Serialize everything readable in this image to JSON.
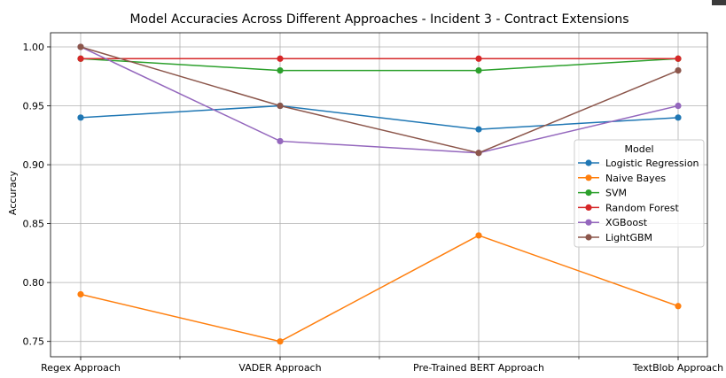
{
  "chart_data": {
    "type": "line",
    "title": "Model Accuracies Across Different Approaches - Incident 3 - Contract Extensions",
    "xlabel": "",
    "ylabel": "Accuracy",
    "categories": [
      "Regex Approach",
      "VADER Approach",
      "Pre-Trained BERT Approach",
      "TextBlob Approach"
    ],
    "ylim": [
      0.737,
      1.012
    ],
    "yticks": [
      0.75,
      0.8,
      0.85,
      0.9,
      0.95,
      1.0
    ],
    "ytick_labels": [
      "0.75",
      "0.80",
      "0.85",
      "0.90",
      "0.95",
      "1.00"
    ],
    "grid": true,
    "legend_title": "Model",
    "legend_position": "center-right",
    "series": [
      {
        "name": "Logistic Regression",
        "color": "#1f77b4",
        "values": [
          0.94,
          0.95,
          0.93,
          0.94
        ]
      },
      {
        "name": "Naive Bayes",
        "color": "#ff7f0e",
        "values": [
          0.79,
          0.75,
          0.84,
          0.78
        ]
      },
      {
        "name": "SVM",
        "color": "#2ca02c",
        "values": [
          0.99,
          0.98,
          0.98,
          0.99
        ]
      },
      {
        "name": "Random Forest",
        "color": "#d62728",
        "values": [
          0.99,
          0.99,
          0.99,
          0.99
        ]
      },
      {
        "name": "XGBoost",
        "color": "#9467bd",
        "values": [
          1.0,
          0.92,
          0.91,
          0.95
        ]
      },
      {
        "name": "LightGBM",
        "color": "#8c564b",
        "values": [
          1.0,
          0.95,
          0.91,
          0.98
        ]
      }
    ]
  }
}
